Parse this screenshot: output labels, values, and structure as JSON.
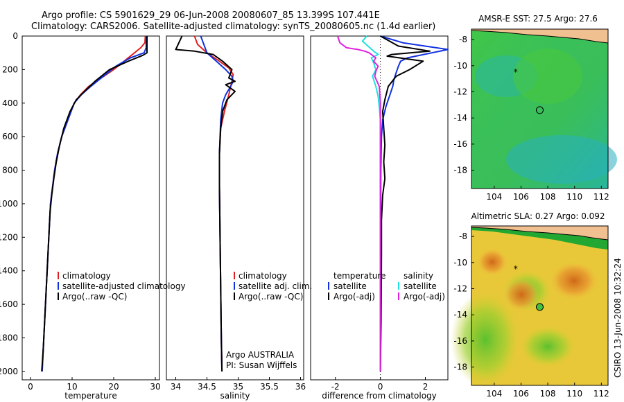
{
  "title_line1": "Argo profile: CS 5901629_29 06-Jun-2008 20080607_85 13.399S 107.441E",
  "title_line2": "Climatology: CARS2006. Satellite-adjusted climatology: synTS_20080605.nc (1.4d earlier)",
  "side_label": "CSIRO 13-Jun-2008 10:32:24",
  "chart_data": [
    {
      "type": "line",
      "xlabel": "temperature",
      "xlim": [
        -2,
        31
      ],
      "ylim": [
        2050,
        0
      ],
      "xticks": [
        0,
        10,
        20,
        30
      ],
      "yticks": [
        0,
        200,
        400,
        600,
        800,
        1000,
        1200,
        1400,
        1600,
        1800,
        2000
      ],
      "legend": [
        "climatology",
        "satellite-adjusted climatology",
        "Argo(..raw -QC)"
      ],
      "series": [
        {
          "name": "climatology",
          "color": "#e02020",
          "points": [
            [
              27.6,
              0
            ],
            [
              27.5,
              40
            ],
            [
              26.5,
              70
            ],
            [
              25,
              100
            ],
            [
              22.5,
              150
            ],
            [
              20,
              200
            ],
            [
              17,
              250
            ],
            [
              14,
              300
            ],
            [
              12,
              350
            ],
            [
              10.5,
              400
            ],
            [
              9,
              500
            ],
            [
              7.5,
              600
            ],
            [
              6.5,
              700
            ],
            [
              5.8,
              800
            ],
            [
              5.3,
              900
            ],
            [
              4.8,
              1000
            ],
            [
              4.4,
              1200
            ],
            [
              4,
              1400
            ],
            [
              3.6,
              1600
            ],
            [
              3.2,
              1800
            ],
            [
              2.8,
              2000
            ]
          ]
        },
        {
          "name": "satellite-adjusted climatology",
          "color": "#1030e0",
          "points": [
            [
              27.8,
              0
            ],
            [
              27.8,
              70
            ],
            [
              27.3,
              100
            ],
            [
              24,
              130
            ],
            [
              20.5,
              180
            ],
            [
              17.5,
              240
            ],
            [
              14.5,
              300
            ],
            [
              12.2,
              350
            ],
            [
              10.5,
              400
            ],
            [
              9,
              500
            ],
            [
              7.5,
              600
            ],
            [
              6.5,
              700
            ],
            [
              5.8,
              800
            ],
            [
              5.3,
              900
            ],
            [
              4.8,
              1000
            ],
            [
              4.4,
              1200
            ],
            [
              4,
              1400
            ],
            [
              3.6,
              1600
            ],
            [
              3.2,
              1800
            ],
            [
              2.8,
              2000
            ]
          ]
        },
        {
          "name": "Argo(..raw -QC)",
          "color": "#000000",
          "points": [
            [
              28,
              0
            ],
            [
              28,
              100
            ],
            [
              27,
              115
            ],
            [
              23.5,
              150
            ],
            [
              19,
              200
            ],
            [
              15.5,
              270
            ],
            [
              13,
              330
            ],
            [
              11,
              380
            ],
            [
              9.5,
              450
            ],
            [
              8,
              550
            ],
            [
              7,
              650
            ],
            [
              6.2,
              750
            ],
            [
              5.6,
              850
            ],
            [
              5.1,
              950
            ],
            [
              4.7,
              1050
            ],
            [
              4.3,
              1250
            ],
            [
              3.9,
              1450
            ],
            [
              3.5,
              1650
            ],
            [
              3.1,
              1850
            ],
            [
              2.7,
              2000
            ]
          ]
        }
      ]
    },
    {
      "type": "line",
      "xlabel": "salinity",
      "xlim": [
        33.85,
        36.05
      ],
      "ylim": [
        2050,
        0
      ],
      "xticks": [
        34,
        34.5,
        35,
        35.5,
        36
      ],
      "legend": [
        "climatology",
        "satellite adj. clim.",
        "Argo(..raw -QC)"
      ],
      "annotations": [
        "Argo AUSTRALIA",
        "PI: Susan Wijffels"
      ],
      "series": [
        {
          "name": "climatology",
          "color": "#e02020",
          "points": [
            [
              34.3,
              0
            ],
            [
              34.35,
              50
            ],
            [
              34.5,
              100
            ],
            [
              34.7,
              150
            ],
            [
              34.85,
              190
            ],
            [
              34.92,
              230
            ],
            [
              34.9,
              270
            ],
            [
              34.88,
              300
            ],
            [
              34.85,
              350
            ],
            [
              34.78,
              450
            ],
            [
              34.72,
              550
            ],
            [
              34.7,
              700
            ],
            [
              34.7,
              900
            ],
            [
              34.71,
              1200
            ],
            [
              34.72,
              1500
            ],
            [
              34.73,
              1800
            ],
            [
              34.74,
              2000
            ]
          ]
        },
        {
          "name": "satellite adj. clim.",
          "color": "#1030e0",
          "points": [
            [
              34.4,
              0
            ],
            [
              34.45,
              50
            ],
            [
              34.5,
              100
            ],
            [
              34.65,
              150
            ],
            [
              34.8,
              200
            ],
            [
              34.9,
              240
            ],
            [
              34.92,
              270
            ],
            [
              34.88,
              300
            ],
            [
              34.8,
              350
            ],
            [
              34.75,
              400
            ],
            [
              34.72,
              500
            ],
            [
              34.7,
              700
            ],
            [
              34.7,
              900
            ],
            [
              34.71,
              1200
            ],
            [
              34.72,
              1500
            ],
            [
              34.73,
              1800
            ],
            [
              34.74,
              2000
            ]
          ]
        },
        {
          "name": "Argo(..raw -QC)",
          "color": "#000000",
          "points": [
            [
              34.1,
              0
            ],
            [
              34.0,
              80
            ],
            [
              34.3,
              90
            ],
            [
              34.6,
              110
            ],
            [
              34.75,
              150
            ],
            [
              34.9,
              200
            ],
            [
              34.85,
              250
            ],
            [
              34.95,
              270
            ],
            [
              34.8,
              290
            ],
            [
              34.95,
              330
            ],
            [
              34.82,
              380
            ],
            [
              34.75,
              450
            ],
            [
              34.72,
              550
            ],
            [
              34.7,
              700
            ],
            [
              34.7,
              900
            ],
            [
              34.71,
              1200
            ],
            [
              34.72,
              1500
            ],
            [
              34.73,
              1800
            ],
            [
              34.74,
              2000
            ]
          ]
        }
      ]
    },
    {
      "type": "line",
      "xlabel": "difference from climatology",
      "xlim": [
        -3.1,
        3.0
      ],
      "ylim": [
        2050,
        0
      ],
      "xticks": [
        -2,
        0,
        2
      ],
      "legend_temperature": [
        "temperature",
        "satellite",
        "Argo(-adj)"
      ],
      "legend_salinity": [
        "salinity",
        "satellite",
        "Argo(-adj)"
      ],
      "series": [
        {
          "name": "temperature satellite",
          "color": "#1030e0",
          "points": [
            [
              0,
              0
            ],
            [
              1,
              40
            ],
            [
              3,
              80
            ],
            [
              1.2,
              130
            ],
            [
              0.9,
              150
            ],
            [
              0.8,
              180
            ],
            [
              0.7,
              220
            ],
            [
              0.6,
              260
            ],
            [
              0.55,
              300
            ],
            [
              0.4,
              360
            ],
            [
              0.25,
              420
            ],
            [
              0.1,
              500
            ],
            [
              0.05,
              600
            ],
            [
              0.02,
              800
            ],
            [
              0.01,
              1200
            ],
            [
              0,
              1600
            ],
            [
              0,
              2000
            ]
          ]
        },
        {
          "name": "temperature Argo(-adj)",
          "color": "#000000",
          "points": [
            [
              0,
              0
            ],
            [
              0.8,
              60
            ],
            [
              2.2,
              90
            ],
            [
              0.5,
              110
            ],
            [
              0.3,
              120
            ],
            [
              1.9,
              150
            ],
            [
              1.3,
              200
            ],
            [
              0.7,
              240
            ],
            [
              0.35,
              300
            ],
            [
              0.2,
              380
            ],
            [
              0.1,
              450
            ],
            [
              0.15,
              550
            ],
            [
              0.2,
              650
            ],
            [
              0.15,
              750
            ],
            [
              0.2,
              850
            ],
            [
              0.1,
              950
            ],
            [
              0.05,
              1100
            ],
            [
              0.05,
              1300
            ],
            [
              0.04,
              1500
            ],
            [
              0.03,
              1700
            ],
            [
              0,
              2000
            ]
          ]
        },
        {
          "name": "salinity satellite",
          "color": "#20e0e0",
          "points": [
            [
              -0.6,
              0
            ],
            [
              -0.8,
              30
            ],
            [
              -0.3,
              90
            ],
            [
              -0.1,
              110
            ],
            [
              -0.4,
              130
            ],
            [
              -0.3,
              160
            ],
            [
              -0.2,
              200
            ],
            [
              -0.35,
              240
            ],
            [
              -0.2,
              300
            ],
            [
              -0.1,
              360
            ],
            [
              -0.05,
              420
            ],
            [
              0,
              500
            ],
            [
              0,
              700
            ],
            [
              0,
              1000
            ],
            [
              0,
              1500
            ],
            [
              0,
              2000
            ]
          ]
        },
        {
          "name": "salinity Argo(-adj)",
          "color": "#e020e0",
          "points": [
            [
              -1.9,
              0
            ],
            [
              -1.8,
              40
            ],
            [
              -1.5,
              70
            ],
            [
              -1.0,
              80
            ],
            [
              -0.7,
              90
            ],
            [
              -0.5,
              100
            ],
            [
              -0.2,
              130
            ],
            [
              -0.3,
              150
            ],
            [
              -0.1,
              180
            ],
            [
              -0.2,
              210
            ],
            [
              -0.25,
              240
            ],
            [
              -0.05,
              300
            ],
            [
              0,
              400
            ],
            [
              0,
              600
            ],
            [
              0,
              1000
            ],
            [
              0,
              2000
            ]
          ]
        }
      ]
    },
    {
      "type": "heatmap",
      "title": "AMSR-E SST: 27.5 Argo: 27.6",
      "xlim": [
        102.3,
        112.5
      ],
      "ylim": [
        -19.4,
        -7.2
      ],
      "xticks": [
        104,
        106,
        108,
        110,
        112
      ],
      "yticks": [
        -8,
        -10,
        -12,
        -14,
        -16,
        -18
      ],
      "markers": [
        {
          "type": "star",
          "lon": 105.6,
          "lat": -10.5
        },
        {
          "type": "circle",
          "lon": 107.4,
          "lat": -13.4
        }
      ]
    },
    {
      "type": "heatmap",
      "title": "Altimetric SLA: 0.27 Argo: 0.092",
      "xlim": [
        102.3,
        112.5
      ],
      "ylim": [
        -19.4,
        -7.2
      ],
      "xticks": [
        104,
        106,
        108,
        110,
        112
      ],
      "yticks": [
        -8,
        -10,
        -12,
        -14,
        -16,
        -18
      ],
      "markers": [
        {
          "type": "star",
          "lon": 105.6,
          "lat": -10.5
        },
        {
          "type": "circle",
          "lon": 107.4,
          "lat": -13.4
        }
      ]
    }
  ]
}
